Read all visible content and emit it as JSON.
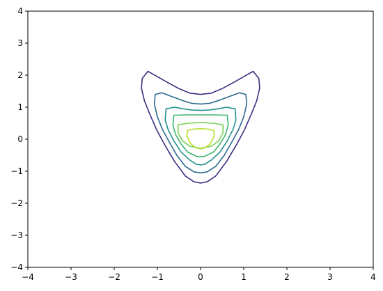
{
  "chart_data": {
    "type": "contour",
    "title": "",
    "xlabel": "",
    "ylabel": "",
    "xlim": [
      -4,
      4
    ],
    "ylim": [
      -4,
      4
    ],
    "grid": false,
    "legend": "none",
    "xticks": [
      -4,
      -3,
      -2,
      -1,
      0,
      1,
      2,
      3,
      4
    ],
    "yticks": [
      -4,
      -3,
      -2,
      -1,
      0,
      1,
      2,
      3,
      4
    ],
    "xtick_labels": [
      "−4",
      "−3",
      "−2",
      "−1",
      "0",
      "1",
      "2",
      "3",
      "4"
    ],
    "ytick_labels": [
      "−4",
      "−3",
      "−2",
      "−1",
      "0",
      "1",
      "2",
      "3",
      "4"
    ],
    "contours": [
      {
        "color": "#3b2f7f",
        "points": [
          [
            1.35,
            1.9
          ],
          [
            1.37,
            1.6
          ],
          [
            1.3,
            1.2
          ],
          [
            1.18,
            0.8
          ],
          [
            1.02,
            0.3
          ],
          [
            0.82,
            -0.2
          ],
          [
            0.6,
            -0.7
          ],
          [
            0.35,
            -1.15
          ],
          [
            0.15,
            -1.33
          ],
          [
            0.0,
            -1.37
          ],
          [
            -0.15,
            -1.33
          ],
          [
            -0.35,
            -1.15
          ],
          [
            -0.6,
            -0.7
          ],
          [
            -0.82,
            -0.2
          ],
          [
            -1.02,
            0.3
          ],
          [
            -1.18,
            0.8
          ],
          [
            -1.3,
            1.2
          ],
          [
            -1.37,
            1.6
          ],
          [
            -1.35,
            1.9
          ],
          [
            -1.22,
            2.12
          ],
          [
            -1.1,
            2.03
          ],
          [
            -0.8,
            1.8
          ],
          [
            -0.5,
            1.58
          ],
          [
            -0.25,
            1.44
          ],
          [
            0.0,
            1.4
          ],
          [
            0.25,
            1.44
          ],
          [
            0.5,
            1.58
          ],
          [
            0.8,
            1.8
          ],
          [
            1.1,
            2.03
          ],
          [
            1.22,
            2.12
          ],
          [
            1.35,
            1.9
          ]
        ]
      },
      {
        "color": "#2c6a8e",
        "points": [
          [
            1.05,
            1.4
          ],
          [
            1.07,
            1.1
          ],
          [
            1.0,
            0.7
          ],
          [
            0.88,
            0.3
          ],
          [
            0.72,
            -0.1
          ],
          [
            0.55,
            -0.5
          ],
          [
            0.35,
            -0.85
          ],
          [
            0.15,
            -1.02
          ],
          [
            0.0,
            -1.05
          ],
          [
            -0.15,
            -1.02
          ],
          [
            -0.35,
            -0.85
          ],
          [
            -0.55,
            -0.5
          ],
          [
            -0.72,
            -0.1
          ],
          [
            -0.88,
            0.3
          ],
          [
            -1.0,
            0.7
          ],
          [
            -1.07,
            1.1
          ],
          [
            -1.05,
            1.4
          ],
          [
            -0.9,
            1.45
          ],
          [
            -0.7,
            1.35
          ],
          [
            -0.4,
            1.2
          ],
          [
            -0.2,
            1.12
          ],
          [
            0.0,
            1.1
          ],
          [
            0.2,
            1.12
          ],
          [
            0.4,
            1.2
          ],
          [
            0.7,
            1.35
          ],
          [
            0.9,
            1.45
          ],
          [
            1.05,
            1.4
          ]
        ]
      },
      {
        "color": "#21918c",
        "points": [
          [
            0.8,
            0.95
          ],
          [
            0.82,
            0.6
          ],
          [
            0.75,
            0.3
          ],
          [
            0.62,
            -0.05
          ],
          [
            0.45,
            -0.4
          ],
          [
            0.25,
            -0.65
          ],
          [
            0.1,
            -0.78
          ],
          [
            0.0,
            -0.8
          ],
          [
            -0.1,
            -0.78
          ],
          [
            -0.25,
            -0.65
          ],
          [
            -0.45,
            -0.4
          ],
          [
            -0.62,
            -0.05
          ],
          [
            -0.75,
            0.3
          ],
          [
            -0.82,
            0.6
          ],
          [
            -0.8,
            0.95
          ],
          [
            -0.6,
            1.0
          ],
          [
            -0.4,
            0.95
          ],
          [
            -0.2,
            0.91
          ],
          [
            0.0,
            0.9
          ],
          [
            0.2,
            0.91
          ],
          [
            0.4,
            0.95
          ],
          [
            0.6,
            1.0
          ],
          [
            0.8,
            0.95
          ]
        ]
      },
      {
        "color": "#3bb66e",
        "points": [
          [
            0.62,
            0.75
          ],
          [
            0.64,
            0.45
          ],
          [
            0.58,
            0.15
          ],
          [
            0.45,
            -0.15
          ],
          [
            0.3,
            -0.4
          ],
          [
            0.1,
            -0.53
          ],
          [
            0.0,
            -0.55
          ],
          [
            -0.1,
            -0.53
          ],
          [
            -0.3,
            -0.4
          ],
          [
            -0.45,
            -0.15
          ],
          [
            -0.58,
            0.15
          ],
          [
            -0.64,
            0.45
          ],
          [
            -0.62,
            0.75
          ],
          [
            -0.3,
            0.76
          ],
          [
            0.0,
            0.76
          ],
          [
            0.3,
            0.76
          ],
          [
            0.62,
            0.75
          ]
        ]
      },
      {
        "color": "#7ad151",
        "points": [
          [
            0.52,
            0.45
          ],
          [
            0.52,
            0.2
          ],
          [
            0.42,
            -0.05
          ],
          [
            0.25,
            -0.22
          ],
          [
            0.0,
            -0.28
          ],
          [
            -0.25,
            -0.22
          ],
          [
            -0.42,
            -0.05
          ],
          [
            -0.52,
            0.2
          ],
          [
            -0.52,
            0.45
          ],
          [
            -0.3,
            0.5
          ],
          [
            0.0,
            0.52
          ],
          [
            0.3,
            0.5
          ],
          [
            0.52,
            0.45
          ]
        ]
      },
      {
        "color": "#b5de2b",
        "points": [
          [
            0.3,
            0.28
          ],
          [
            0.32,
            0.1
          ],
          [
            0.22,
            -0.15
          ],
          [
            0.1,
            -0.27
          ],
          [
            0.0,
            -0.3
          ],
          [
            -0.1,
            -0.27
          ],
          [
            -0.22,
            -0.15
          ],
          [
            -0.32,
            0.1
          ],
          [
            -0.3,
            0.28
          ],
          [
            -0.15,
            0.32
          ],
          [
            0.0,
            0.33
          ],
          [
            0.15,
            0.32
          ],
          [
            0.3,
            0.28
          ]
        ]
      }
    ]
  }
}
